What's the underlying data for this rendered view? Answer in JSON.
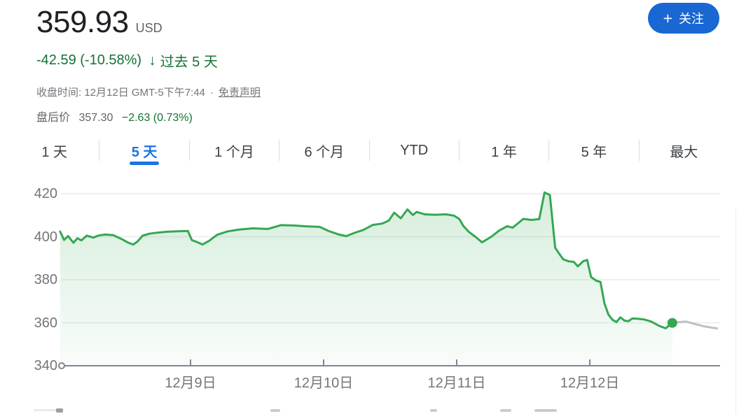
{
  "header": {
    "price": "359.93",
    "currency": "USD",
    "change_text": "-42.59 (-10.58%)",
    "down_arrow": "↓",
    "change_period": "过去 5 天",
    "close_time_text": "收盘时间: 12月12日 GMT-5下午7:44",
    "separator": "·",
    "disclaimer_label": "免责声明",
    "after_hours_label": "盘后价",
    "after_hours_price": "357.30",
    "after_hours_change": "−2.63 (0.73%)",
    "follow_label": "关注",
    "plus_icon": "+",
    "colors": {
      "change_green": "#137333",
      "accent_blue": "#1a73e8",
      "price_text": "#202124",
      "muted_text": "#70757a"
    }
  },
  "tabs": {
    "items": [
      {
        "label": "1 天",
        "selected": false
      },
      {
        "label": "5 天",
        "selected": true
      },
      {
        "label": "1 个月",
        "selected": false
      },
      {
        "label": "6 个月",
        "selected": false
      },
      {
        "label": "YTD",
        "selected": false
      },
      {
        "label": "1 年",
        "selected": false
      },
      {
        "label": "5 年",
        "selected": false
      },
      {
        "label": "最大",
        "selected": false
      }
    ]
  },
  "chart_data": {
    "type": "area",
    "y_ticks": [
      340,
      360,
      380,
      400,
      420
    ],
    "y_range": [
      340,
      420
    ],
    "t_range": [
      0,
      5
    ],
    "x_ticks": [
      {
        "label": "12月9日",
        "t": 1
      },
      {
        "label": "12月10日",
        "t": 2
      },
      {
        "label": "12月11日",
        "t": 3
      },
      {
        "label": "12月12日",
        "t": 4
      }
    ],
    "grid": true,
    "legend": "none",
    "series": [
      {
        "name": "regular_session",
        "color": "#34a853",
        "fill": true,
        "points": [
          [
            0.02,
            402.4
          ],
          [
            0.05,
            398.5
          ],
          [
            0.08,
            400.3
          ],
          [
            0.12,
            397.2
          ],
          [
            0.15,
            399.3
          ],
          [
            0.18,
            398.3
          ],
          [
            0.22,
            400.5
          ],
          [
            0.27,
            399.6
          ],
          [
            0.31,
            400.6
          ],
          [
            0.36,
            401.0
          ],
          [
            0.42,
            400.7
          ],
          [
            0.48,
            399.0
          ],
          [
            0.53,
            397.3
          ],
          [
            0.57,
            396.4
          ],
          [
            0.6,
            397.7
          ],
          [
            0.64,
            400.5
          ],
          [
            0.69,
            401.4
          ],
          [
            0.75,
            401.9
          ],
          [
            0.82,
            402.3
          ],
          [
            0.9,
            402.5
          ],
          [
            0.98,
            402.7
          ],
          [
            1.01,
            398.4
          ],
          [
            1.05,
            397.5
          ],
          [
            1.09,
            396.4
          ],
          [
            1.14,
            398.1
          ],
          [
            1.2,
            400.9
          ],
          [
            1.28,
            402.5
          ],
          [
            1.36,
            403.3
          ],
          [
            1.47,
            403.9
          ],
          [
            1.58,
            403.6
          ],
          [
            1.68,
            405.4
          ],
          [
            1.78,
            405.2
          ],
          [
            1.88,
            404.8
          ],
          [
            1.97,
            404.6
          ],
          [
            2.04,
            402.6
          ],
          [
            2.11,
            401.1
          ],
          [
            2.17,
            400.3
          ],
          [
            2.24,
            402.0
          ],
          [
            2.3,
            403.2
          ],
          [
            2.37,
            405.5
          ],
          [
            2.44,
            406.1
          ],
          [
            2.49,
            407.5
          ],
          [
            2.53,
            411.2
          ],
          [
            2.58,
            408.6
          ],
          [
            2.63,
            412.7
          ],
          [
            2.67,
            410.1
          ],
          [
            2.7,
            411.5
          ],
          [
            2.76,
            410.4
          ],
          [
            2.84,
            410.2
          ],
          [
            2.92,
            410.4
          ],
          [
            2.98,
            409.8
          ],
          [
            3.02,
            408.2
          ],
          [
            3.05,
            405.0
          ],
          [
            3.09,
            402.3
          ],
          [
            3.14,
            400.0
          ],
          [
            3.19,
            397.4
          ],
          [
            3.26,
            400.0
          ],
          [
            3.32,
            402.9
          ],
          [
            3.38,
            404.9
          ],
          [
            3.42,
            404.2
          ],
          [
            3.46,
            406.2
          ],
          [
            3.5,
            408.3
          ],
          [
            3.56,
            407.8
          ],
          [
            3.62,
            408.2
          ],
          [
            3.66,
            420.6
          ],
          [
            3.7,
            419.4
          ],
          [
            3.74,
            394.9
          ],
          [
            3.77,
            392.1
          ],
          [
            3.8,
            389.5
          ],
          [
            3.84,
            388.6
          ],
          [
            3.88,
            388.3
          ],
          [
            3.91,
            386.2
          ],
          [
            3.95,
            388.6
          ],
          [
            3.98,
            389.2
          ],
          [
            4.01,
            381.2
          ],
          [
            4.05,
            379.5
          ],
          [
            4.08,
            379.0
          ],
          [
            4.11,
            369.0
          ],
          [
            4.14,
            363.8
          ],
          [
            4.17,
            361.4
          ],
          [
            4.2,
            360.3
          ],
          [
            4.23,
            362.5
          ],
          [
            4.26,
            361.0
          ],
          [
            4.29,
            360.7
          ],
          [
            4.32,
            362.0
          ],
          [
            4.36,
            361.9
          ],
          [
            4.41,
            361.5
          ],
          [
            4.46,
            360.6
          ],
          [
            4.52,
            358.6
          ],
          [
            4.57,
            357.4
          ],
          [
            4.62,
            359.93
          ]
        ]
      },
      {
        "name": "after_hours",
        "color": "#bdc1c6",
        "fill": false,
        "points": [
          [
            4.62,
            359.93
          ],
          [
            4.66,
            360.2
          ],
          [
            4.72,
            360.6
          ],
          [
            4.79,
            359.4
          ],
          [
            4.86,
            358.3
          ],
          [
            4.92,
            357.7
          ],
          [
            4.955,
            357.4
          ]
        ]
      }
    ],
    "last_price_marker": {
      "t": 4.62,
      "price": 359.93,
      "color": "#34a853"
    }
  }
}
